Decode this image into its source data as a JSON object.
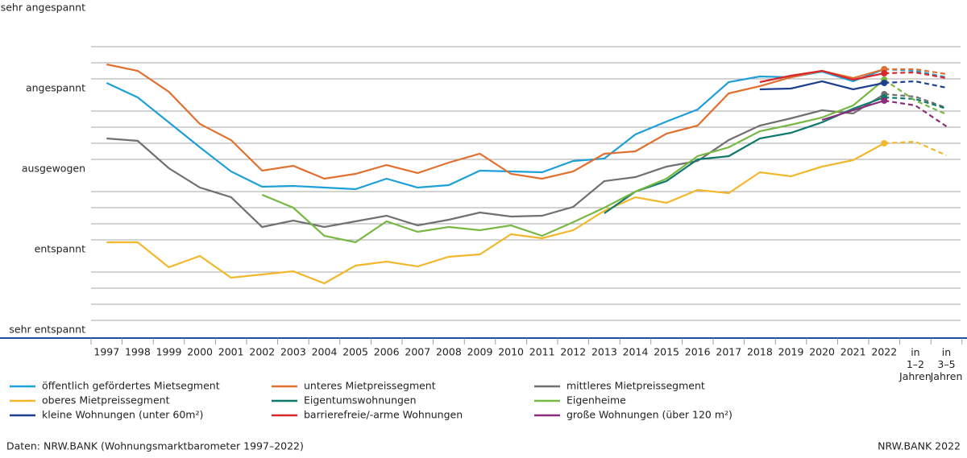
{
  "chart_data": {
    "type": "line",
    "categories": [
      "1997",
      "1998",
      "1999",
      "2000",
      "2001",
      "2002",
      "2003",
      "2004",
      "2005",
      "2006",
      "2007",
      "2008",
      "2009",
      "2010",
      "2011",
      "2012",
      "2013",
      "2014",
      "2015",
      "2016",
      "2017",
      "2018",
      "2019",
      "2020",
      "2021",
      "2022",
      "in 1–2 Jahren",
      "in 3–5 Jahren"
    ],
    "ylim": [
      -2.1,
      2.0
    ],
    "yticks": [
      {
        "value": -2,
        "label": "sehr entspannt"
      },
      {
        "value": -1,
        "label": "entspannt"
      },
      {
        "value": 0,
        "label": "ausgewogen"
      },
      {
        "value": 1,
        "label": "angespannt"
      },
      {
        "value": 2,
        "label": "sehr angespannt"
      }
    ],
    "grid": true,
    "series": [
      {
        "name": "öffentlich gefördertes Mietsegment",
        "color": "#1f9fd8",
        "values": [
          1.07,
          0.89,
          0.58,
          0.27,
          -0.03,
          -0.22,
          -0.21,
          -0.23,
          -0.25,
          -0.12,
          -0.23,
          -0.2,
          -0.02,
          -0.03,
          -0.04,
          0.1,
          0.13,
          0.43,
          0.59,
          0.74,
          1.08,
          1.15,
          1.14,
          1.21,
          1.09,
          1.24,
          1.22,
          1.14
        ]
      },
      {
        "name": "unteres Mietpreissegment",
        "color": "#e07030",
        "values": [
          1.3,
          1.22,
          0.96,
          0.56,
          0.36,
          -0.02,
          0.04,
          -0.12,
          -0.06,
          0.05,
          -0.05,
          0.08,
          0.19,
          -0.06,
          -0.12,
          -0.03,
          0.19,
          0.22,
          0.44,
          0.54,
          0.94,
          1.03,
          1.14,
          1.22,
          1.13,
          1.24,
          1.24,
          1.18
        ]
      },
      {
        "name": "mittleres Mietpreissegment",
        "color": "#707070",
        "values": [
          0.38,
          0.35,
          0.01,
          -0.23,
          -0.35,
          -0.72,
          -0.64,
          -0.72,
          -0.65,
          -0.58,
          -0.7,
          -0.63,
          -0.54,
          -0.59,
          -0.58,
          -0.47,
          -0.15,
          -0.1,
          0.03,
          0.1,
          0.36,
          0.54,
          0.63,
          0.73,
          0.69,
          0.93,
          0.9,
          0.76
        ]
      },
      {
        "name": "oberes Mietpreissegment",
        "color": "#f2b82c",
        "values": [
          -0.91,
          -0.91,
          -1.22,
          -1.08,
          -1.35,
          -1.31,
          -1.27,
          -1.42,
          -1.2,
          -1.15,
          -1.21,
          -1.09,
          -1.06,
          -0.81,
          -0.86,
          -0.76,
          -0.52,
          -0.35,
          -0.42,
          -0.26,
          -0.3,
          -0.04,
          -0.09,
          0.03,
          0.11,
          0.32,
          0.34,
          0.17
        ]
      },
      {
        "name": "Eigentumswohnungen",
        "color": "#0f7a6c",
        "values": [
          null,
          null,
          null,
          null,
          null,
          null,
          null,
          null,
          null,
          null,
          null,
          null,
          null,
          null,
          null,
          null,
          -0.55,
          -0.28,
          -0.15,
          0.12,
          0.16,
          0.38,
          0.45,
          0.58,
          0.75,
          0.89,
          0.87,
          0.75
        ]
      },
      {
        "name": "Eigenheime",
        "color": "#77b843",
        "values": [
          null,
          null,
          null,
          null,
          null,
          -0.32,
          -0.48,
          -0.83,
          -0.91,
          -0.65,
          -0.78,
          -0.72,
          -0.76,
          -0.7,
          -0.83,
          -0.66,
          -0.48,
          -0.28,
          -0.12,
          0.16,
          0.27,
          0.47,
          0.55,
          0.64,
          0.79,
          1.11,
          0.85,
          0.68
        ]
      },
      {
        "name": "kleine Wohnungen (unter 60m²)",
        "color": "#1d3f8f",
        "values": [
          null,
          null,
          null,
          null,
          null,
          null,
          null,
          null,
          null,
          null,
          null,
          null,
          null,
          null,
          null,
          null,
          null,
          null,
          null,
          null,
          null,
          0.99,
          1.0,
          1.09,
          0.99,
          1.07,
          1.09,
          1.01
        ]
      },
      {
        "name": "barrierefreie/-arme Wohnungen",
        "color": "#d9262b",
        "values": [
          null,
          null,
          null,
          null,
          null,
          null,
          null,
          null,
          null,
          null,
          null,
          null,
          null,
          null,
          null,
          null,
          null,
          null,
          null,
          null,
          null,
          1.08,
          1.16,
          1.22,
          1.11,
          1.19,
          1.2,
          1.13
        ]
      },
      {
        "name": "große Wohnungen (über 120 m²)",
        "color": "#8a2d7a",
        "values": [
          null,
          null,
          null,
          null,
          null,
          null,
          null,
          null,
          null,
          null,
          null,
          null,
          null,
          null,
          null,
          null,
          null,
          null,
          null,
          null,
          null,
          null,
          null,
          0.61,
          0.73,
          0.85,
          0.79,
          0.53
        ]
      }
    ],
    "source": "Daten: NRW.BANK (Wohnungsmarktbarometer 1997–2022)",
    "credit": "NRW.BANK 2022"
  }
}
